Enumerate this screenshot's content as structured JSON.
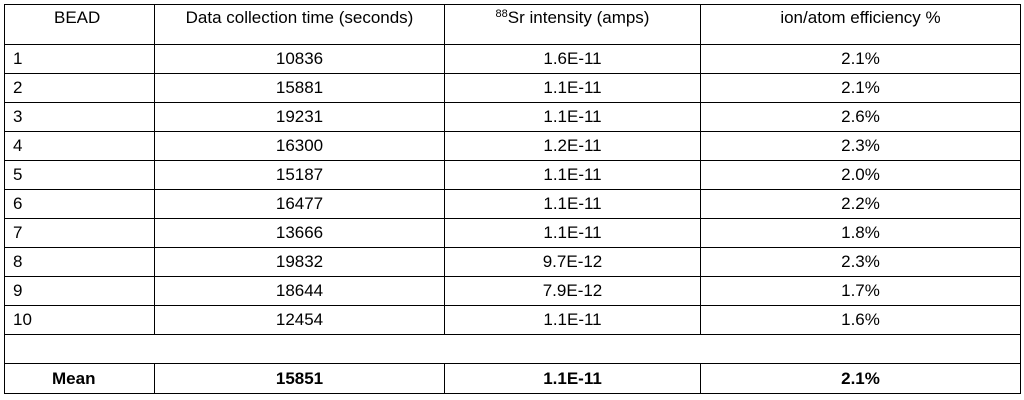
{
  "table": {
    "headers": {
      "bead": "BEAD",
      "time": "Data collection time (seconds)",
      "intensity_sup": "88",
      "intensity": "Sr intensity (amps)",
      "efficiency": "ion/atom efficiency %"
    },
    "rows": [
      {
        "bead": "1",
        "time": "10836",
        "intensity": "1.6E-11",
        "efficiency": "2.1%"
      },
      {
        "bead": "2",
        "time": "15881",
        "intensity": "1.1E-11",
        "efficiency": "2.1%"
      },
      {
        "bead": "3",
        "time": "19231",
        "intensity": "1.1E-11",
        "efficiency": "2.6%"
      },
      {
        "bead": "4",
        "time": "16300",
        "intensity": "1.2E-11",
        "efficiency": "2.3%"
      },
      {
        "bead": "5",
        "time": "15187",
        "intensity": "1.1E-11",
        "efficiency": "2.0%"
      },
      {
        "bead": "6",
        "time": "16477",
        "intensity": "1.1E-11",
        "efficiency": "2.2%"
      },
      {
        "bead": "7",
        "time": "13666",
        "intensity": "1.1E-11",
        "efficiency": "1.8%"
      },
      {
        "bead": "8",
        "time": "19832",
        "intensity": "9.7E-12",
        "efficiency": "2.3%"
      },
      {
        "bead": "9",
        "time": "18644",
        "intensity": "7.9E-12",
        "efficiency": "1.7%"
      },
      {
        "bead": "10",
        "time": "12454",
        "intensity": "1.1E-11",
        "efficiency": "1.6%"
      }
    ],
    "mean": {
      "label": "Mean",
      "time": "15851",
      "intensity": "1.1E-11",
      "efficiency": "2.1%"
    }
  }
}
